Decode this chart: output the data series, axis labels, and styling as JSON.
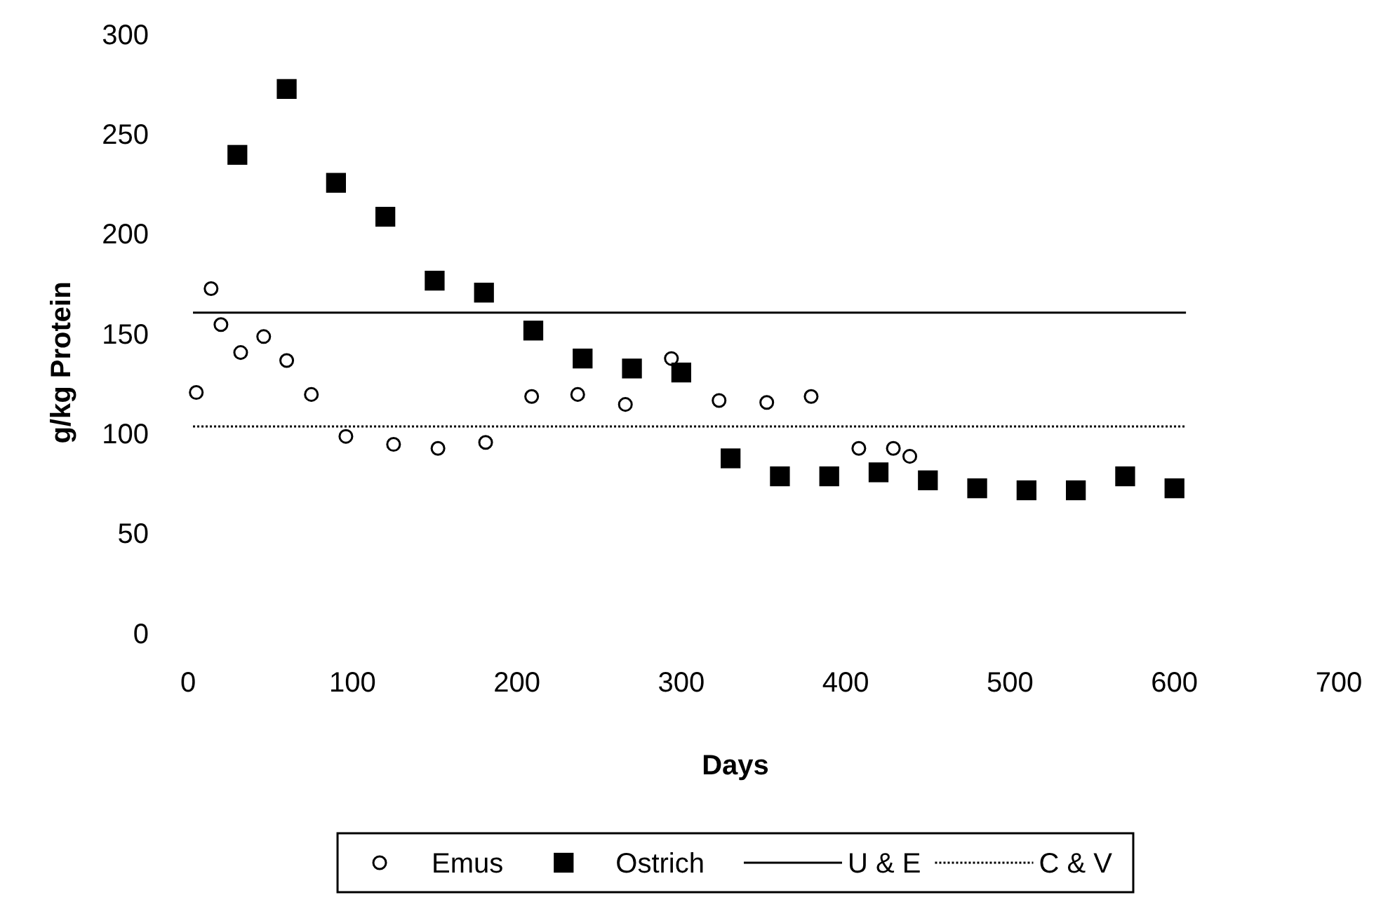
{
  "chart_data": {
    "type": "scatter",
    "xlabel": "Days",
    "ylabel": "g/kg Protein",
    "xlim": [
      0,
      700
    ],
    "ylim": [
      0,
      300
    ],
    "xticks": [
      0,
      100,
      200,
      300,
      400,
      500,
      600,
      700
    ],
    "yticks": [
      0,
      50,
      100,
      150,
      200,
      250,
      300
    ],
    "grid": false,
    "legend": "bottom",
    "series": [
      {
        "name": "Emus",
        "marker": "circle",
        "color": "#000000",
        "x": [
          5,
          14,
          20,
          32,
          46,
          60,
          75,
          96,
          125,
          152,
          181,
          209,
          237,
          266,
          294,
          323,
          352,
          379,
          408,
          429,
          439
        ],
        "values": [
          121,
          173,
          155,
          141,
          149,
          137,
          120,
          99,
          95,
          93,
          96,
          119,
          120,
          115,
          138,
          117,
          116,
          119,
          93,
          93,
          89
        ]
      },
      {
        "name": "Ostrich",
        "marker": "square",
        "color": "#000000",
        "x": [
          30,
          60,
          90,
          120,
          150,
          180,
          210,
          240,
          270,
          300,
          330,
          360,
          390,
          420,
          450,
          480,
          510,
          540,
          570,
          600
        ],
        "values": [
          240,
          273,
          226,
          209,
          177,
          171,
          152,
          138,
          133,
          131,
          88,
          79,
          79,
          81,
          77,
          73,
          72,
          72,
          79,
          73
        ]
      },
      {
        "name": "U & E",
        "type": "line",
        "marker": "none",
        "line_style": "solid",
        "color": "#000000",
        "x": [
          3,
          607
        ],
        "values": [
          161,
          161
        ]
      },
      {
        "name": "C & V",
        "type": "line",
        "marker": "none",
        "line_style": "dotted",
        "color": "#000000",
        "x": [
          3,
          607
        ],
        "values": [
          104,
          104
        ]
      }
    ]
  }
}
